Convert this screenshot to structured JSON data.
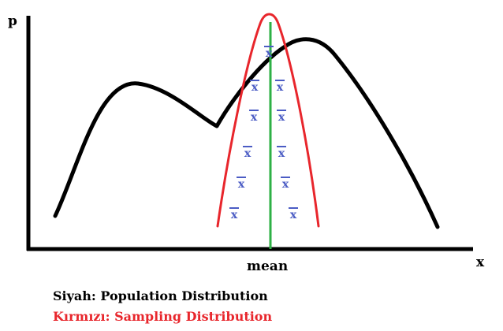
{
  "labels": {
    "y_axis": "p",
    "x_axis": "x",
    "mean": "mean",
    "sample_mean_symbol": "x"
  },
  "legend": {
    "population": "Siyah: Population Distribution",
    "sampling": "Kırmızı: Sampling Distribution"
  },
  "colors": {
    "population": "#000000",
    "sampling": "#e8262c",
    "mean_line": "#2eb045",
    "sample_means": "#4b5cc4"
  },
  "sample_mean_count": 13
}
